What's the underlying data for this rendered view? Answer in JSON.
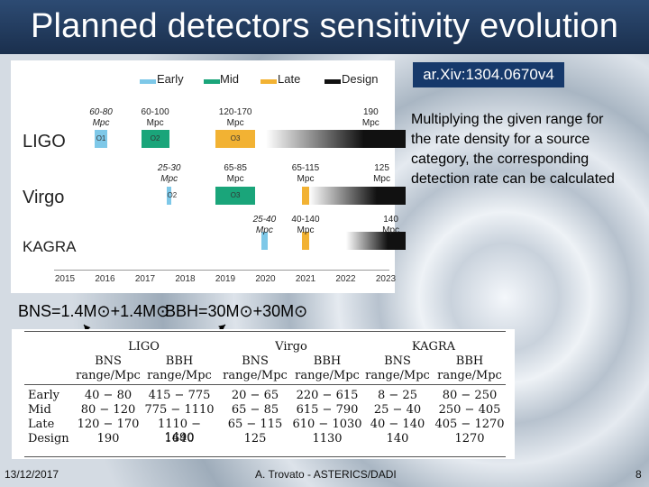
{
  "header": {
    "title": "Planned detectors sensitivity evolution"
  },
  "reference": "ar.Xiv:1304.0670v4",
  "note": "Multiplying the given range for the rate density for a source category, the corresponding detection rate can be calculated",
  "mass_labels": {
    "bns": "BNS=1.4M⊙+1.4M⊙",
    "bbh": "BBH=30M⊙+30M⊙"
  },
  "colors": {
    "early": "#7ec8e8",
    "mid": "#1aa57a",
    "late": "#f2b233",
    "design": "#111111",
    "header": "#1f3a60"
  },
  "chart_data": {
    "type": "timeline",
    "legend": [
      "Early",
      "Mid",
      "Late",
      "Design"
    ],
    "years": [
      "2015",
      "2016",
      "2017",
      "2018",
      "2019",
      "2020",
      "2021",
      "2022",
      "2023"
    ],
    "detectors": [
      {
        "name": "LIGO",
        "runs": [
          {
            "label": "O1",
            "range": "60-80 Mpc",
            "phase": "early",
            "start": 2015.75,
            "end": 2016.05
          },
          {
            "label": "O2",
            "range": "60-100 Mpc",
            "phase": "mid",
            "start": 2016.9,
            "end": 2017.6
          },
          {
            "label": "O3",
            "range": "120-170 Mpc",
            "phase": "late",
            "start": 2018.75,
            "end": 2019.75
          },
          {
            "label": "",
            "range": "190 Mpc",
            "phase": "design",
            "start": 2020.0,
            "end": 2023.5
          }
        ]
      },
      {
        "name": "Virgo",
        "runs": [
          {
            "label": "O2",
            "range": "25-30 Mpc",
            "phase": "early",
            "start": 2017.55,
            "end": 2017.65
          },
          {
            "label": "O3",
            "range": "65-85 Mpc",
            "phase": "mid",
            "start": 2018.75,
            "end": 2019.75
          },
          {
            "label": "",
            "range": "65-115 Mpc",
            "phase": "late",
            "start": 2020.9,
            "end": 2021.1
          },
          {
            "label": "",
            "range": "125 Mpc",
            "phase": "design",
            "start": 2021.1,
            "end": 2023.5
          }
        ]
      },
      {
        "name": "KAGRA",
        "runs": [
          {
            "label": "",
            "range": "25-40 Mpc",
            "phase": "early",
            "start": 2019.9,
            "end": 2020.05
          },
          {
            "label": "",
            "range": "40-140 Mpc",
            "phase": "late",
            "start": 2020.9,
            "end": 2021.1
          },
          {
            "label": "",
            "range": "140 Mpc",
            "phase": "design",
            "start": 2022.0,
            "end": 2023.5
          }
        ]
      }
    ]
  },
  "table": {
    "groups": [
      "LIGO",
      "Virgo",
      "KAGRA"
    ],
    "columns": [
      "BNS range/Mpc",
      "BBH range/Mpc",
      "BNS range/Mpc",
      "BBH range/Mpc",
      "BNS range/Mpc",
      "BBH range/Mpc"
    ],
    "col_titles": [
      "BNS",
      "BBH",
      "BNS",
      "BBH",
      "BNS",
      "BBH"
    ],
    "col_sub": "range/Mpc",
    "rows": [
      {
        "phase": "Early",
        "values": [
          "40 − 80",
          "415 − 775",
          "20 − 65",
          "220 − 615",
          "8 − 25",
          "80 − 250"
        ]
      },
      {
        "phase": "Mid",
        "values": [
          "80 − 120",
          "775 − 1110",
          "65 − 85",
          "615 − 790",
          "25 − 40",
          "250 − 405"
        ]
      },
      {
        "phase": "Late",
        "values": [
          "120 − 170",
          "1110 − 1490",
          "65 − 115",
          "610 − 1030",
          "40 − 140",
          "405 − 1270"
        ]
      },
      {
        "phase": "Design",
        "values": [
          "190",
          "1640",
          "125",
          "1130",
          "140",
          "1270"
        ]
      }
    ]
  },
  "footer": {
    "date": "13/12/2017",
    "author": "A. Trovato - ASTERICS/DADI",
    "page": "8"
  }
}
